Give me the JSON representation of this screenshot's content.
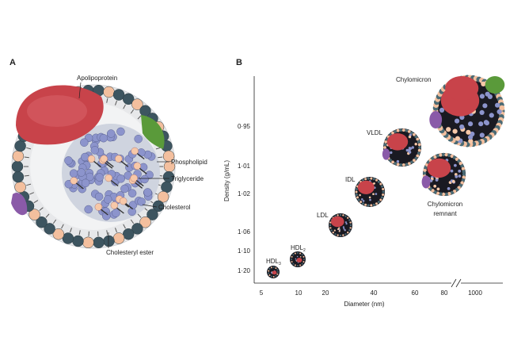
{
  "panel_a": {
    "letter": "A",
    "labels": {
      "apolipoprotein": "Apolipoprotein",
      "phospholipid": "Phospholipid",
      "triglyceride": "Triglyceride",
      "cholesterol": "Cholesterol",
      "cholesteryl_ester": "Cholesteryl ester"
    }
  },
  "panel_b": {
    "letter": "B",
    "y_axis_title": "Density (g/mL)",
    "x_axis_title": "Diameter (nm)",
    "y_ticks": [
      "0·95",
      "1·01",
      "1·02",
      "1·06",
      "1·10",
      "1·20"
    ],
    "x_ticks": [
      "5",
      "10",
      "20",
      "40",
      "60",
      "80",
      "1000"
    ],
    "particles": [
      {
        "name": "HDL",
        "sub": "3"
      },
      {
        "name": "HDL",
        "sub": "2"
      },
      {
        "name": "LDL"
      },
      {
        "name": "IDL"
      },
      {
        "name": "VLDL"
      },
      {
        "name": "Chylomicron remnant",
        "line1": "Chylomicron",
        "line2": "remnant"
      },
      {
        "name": "Chylomicron"
      }
    ]
  },
  "colors": {
    "apolipoprotein": "#c8434a",
    "phospholipid_head_dark": "#3d5560",
    "phospholipid_head_light": "#f3bf9e",
    "triglyceride": "#8c94cc",
    "cholesterol": "#f7c8a8",
    "green_protein": "#5a9a3a",
    "purple_protein": "#8a5aa8"
  }
}
